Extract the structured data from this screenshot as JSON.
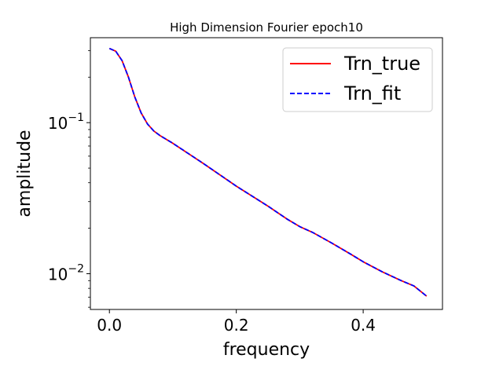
{
  "chart_data": {
    "type": "line",
    "title": "High Dimension Fourier epoch10",
    "xlabel": "frequency",
    "ylabel": "amplitude",
    "xlim": [
      -0.03,
      0.525
    ],
    "ylim": [
      0.0058,
      0.365
    ],
    "yscale": "log",
    "grid": false,
    "legend_position": "top-right",
    "x_ticks": [
      {
        "value": 0.0,
        "label": "0.0"
      },
      {
        "value": 0.2,
        "label": "0.2"
      },
      {
        "value": 0.4,
        "label": "0.4"
      }
    ],
    "y_ticks_major": [
      {
        "value": 0.1,
        "base": "10",
        "exp": "−1"
      },
      {
        "value": 0.01,
        "base": "10",
        "exp": "−2"
      }
    ],
    "y_ticks_minor": [
      0.006,
      0.007,
      0.008,
      0.009,
      0.02,
      0.03,
      0.04,
      0.05,
      0.06,
      0.07,
      0.08,
      0.09,
      0.2,
      0.3
    ],
    "x": [
      0.0,
      0.01,
      0.02,
      0.03,
      0.04,
      0.05,
      0.06,
      0.07,
      0.08,
      0.1,
      0.15,
      0.2,
      0.25,
      0.28,
      0.3,
      0.32,
      0.35,
      0.38,
      0.4,
      0.43,
      0.46,
      0.48,
      0.5
    ],
    "series": [
      {
        "name": "Trn_true",
        "color": "#ff0000",
        "style": "solid",
        "values": [
          0.31,
          0.297,
          0.257,
          0.2,
          0.148,
          0.116,
          0.098,
          0.088,
          0.082,
          0.073,
          0.053,
          0.038,
          0.028,
          0.023,
          0.0205,
          0.0188,
          0.016,
          0.0135,
          0.012,
          0.0103,
          0.009,
          0.0083,
          0.0071
        ]
      },
      {
        "name": "Trn_fit",
        "color": "#0000ff",
        "style": "dashed",
        "values": [
          0.31,
          0.297,
          0.257,
          0.2,
          0.148,
          0.116,
          0.098,
          0.088,
          0.082,
          0.073,
          0.053,
          0.038,
          0.028,
          0.023,
          0.0205,
          0.0188,
          0.016,
          0.0135,
          0.012,
          0.0103,
          0.009,
          0.0083,
          0.0071
        ]
      }
    ]
  }
}
